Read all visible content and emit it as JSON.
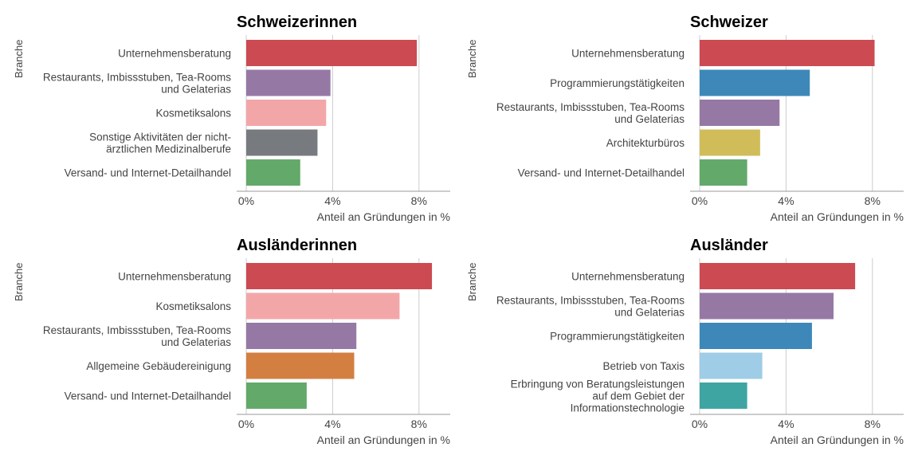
{
  "chart_data": [
    {
      "type": "bar",
      "orientation": "horizontal",
      "title": "Schweizerinnen",
      "ylabel": "Branche",
      "xlabel": "Anteil an Gründungen in %",
      "xlim": [
        0,
        9.5
      ],
      "xticks": [
        "0%",
        "4%",
        "8%"
      ],
      "grid": true,
      "categories": [
        [
          "Unternehmensberatung"
        ],
        [
          "Restaurants, Imbissstuben, Tea-Rooms",
          "und Gelaterias"
        ],
        [
          "Kosmetiksalons"
        ],
        [
          "Sonstige Aktivitäten der nicht-",
          "ärztlichen Medizinalberufe"
        ],
        [
          "Versand- und Internet-Detailhandel"
        ]
      ],
      "values": [
        7.9,
        3.9,
        3.7,
        3.3,
        2.5
      ],
      "colors": [
        "#cc4a51",
        "#9678a5",
        "#f3a6a8",
        "#777b7f",
        "#63a96a"
      ]
    },
    {
      "type": "bar",
      "orientation": "horizontal",
      "title": "Schweizer",
      "ylabel": "Branche",
      "xlabel": "Anteil an Gründungen in %",
      "xlim": [
        0,
        9.5
      ],
      "xticks": [
        "0%",
        "4%",
        "8%"
      ],
      "grid": true,
      "categories": [
        [
          "Unternehmensberatung"
        ],
        [
          "Programmierungstätigkeiten"
        ],
        [
          "Restaurants, Imbissstuben, Tea-Rooms",
          "und Gelaterias"
        ],
        [
          "Architekturbüros"
        ],
        [
          "Versand- und Internet-Detailhandel"
        ]
      ],
      "values": [
        8.1,
        5.1,
        3.7,
        2.8,
        2.2
      ],
      "colors": [
        "#cc4a51",
        "#3d88b8",
        "#9678a5",
        "#d0bd5a",
        "#63a96a"
      ]
    },
    {
      "type": "bar",
      "orientation": "horizontal",
      "title": "Ausländerinnen",
      "ylabel": "Branche",
      "xlabel": "Anteil an Gründungen in %",
      "xlim": [
        0,
        9.5
      ],
      "xticks": [
        "0%",
        "4%",
        "8%"
      ],
      "grid": true,
      "categories": [
        [
          "Unternehmensberatung"
        ],
        [
          "Kosmetiksalons"
        ],
        [
          "Restaurants, Imbissstuben, Tea-Rooms",
          "und Gelaterias"
        ],
        [
          "Allgemeine Gebäudereinigung"
        ],
        [
          "Versand- und Internet-Detailhandel"
        ]
      ],
      "values": [
        8.6,
        7.1,
        5.1,
        5.0,
        2.8
      ],
      "colors": [
        "#cc4a51",
        "#f3a6a8",
        "#9678a5",
        "#d37f42",
        "#63a96a"
      ]
    },
    {
      "type": "bar",
      "orientation": "horizontal",
      "title": "Ausländer",
      "ylabel": "Branche",
      "xlabel": "Anteil an Gründungen in %",
      "xlim": [
        0,
        9.5
      ],
      "xticks": [
        "0%",
        "4%",
        "8%"
      ],
      "grid": true,
      "categories": [
        [
          "Unternehmensberatung"
        ],
        [
          "Restaurants, Imbissstuben, Tea-Rooms",
          "und Gelaterias"
        ],
        [
          "Programmierungstätigkeiten"
        ],
        [
          "Betrieb von Taxis"
        ],
        [
          "Erbringung von Beratungsleistungen",
          "auf dem Gebiet der",
          "Informationstechnologie"
        ]
      ],
      "values": [
        7.2,
        6.2,
        5.2,
        2.9,
        2.2
      ],
      "colors": [
        "#cc4a51",
        "#9678a5",
        "#3d88b8",
        "#9fcce6",
        "#3ea5a3"
      ]
    }
  ]
}
